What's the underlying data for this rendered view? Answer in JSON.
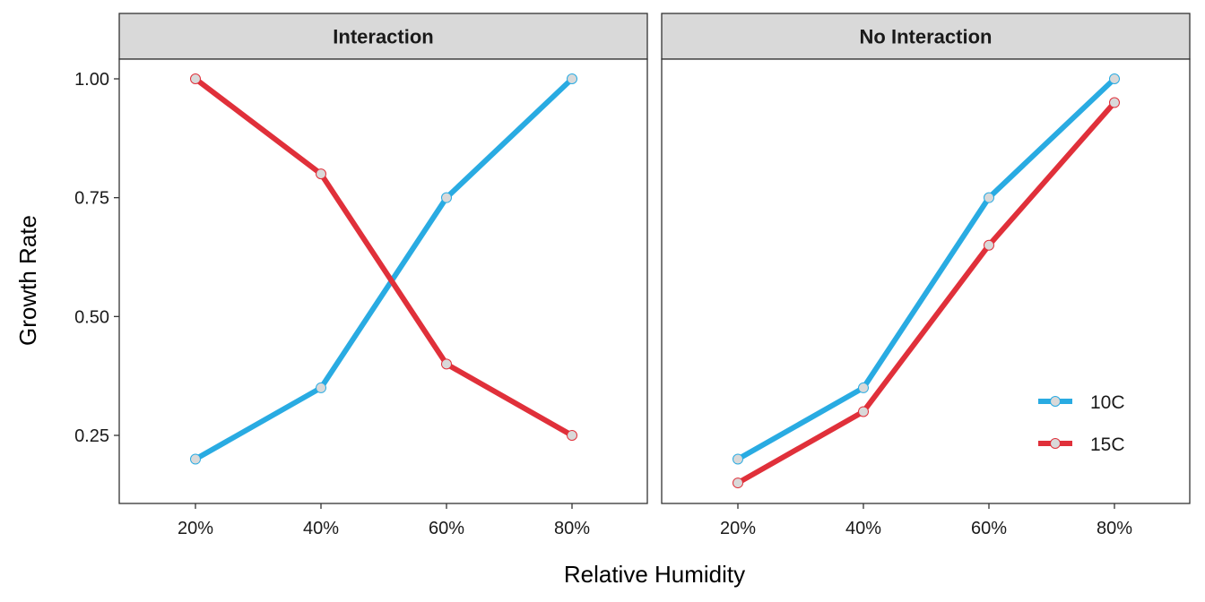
{
  "chart_data": {
    "type": "line",
    "xlabel": "Relative Humidity",
    "ylabel": "Growth Rate",
    "categories": [
      "20%",
      "40%",
      "60%",
      "80%"
    ],
    "yticks": [
      "0.25",
      "0.50",
      "0.75",
      "1.00"
    ],
    "ylim": [
      0.11,
      1.04
    ],
    "grid": false,
    "legend": {
      "placement": "bottom-right",
      "entries": [
        "10C",
        "15C"
      ]
    },
    "colors": {
      "10C": "#29ABE2",
      "15C": "#E0303A",
      "point_fill": "#D9D9D9",
      "strip_bg": "#D9D9D9"
    },
    "panels": [
      {
        "title": "Interaction",
        "series": [
          {
            "name": "10C",
            "values": [
              0.2,
              0.35,
              0.75,
              1.0
            ]
          },
          {
            "name": "15C",
            "values": [
              1.0,
              0.8,
              0.4,
              0.25
            ]
          }
        ]
      },
      {
        "title": "No Interaction",
        "series": [
          {
            "name": "10C",
            "values": [
              0.2,
              0.35,
              0.75,
              1.0
            ]
          },
          {
            "name": "15C",
            "values": [
              0.15,
              0.3,
              0.65,
              0.95
            ]
          }
        ]
      }
    ]
  }
}
